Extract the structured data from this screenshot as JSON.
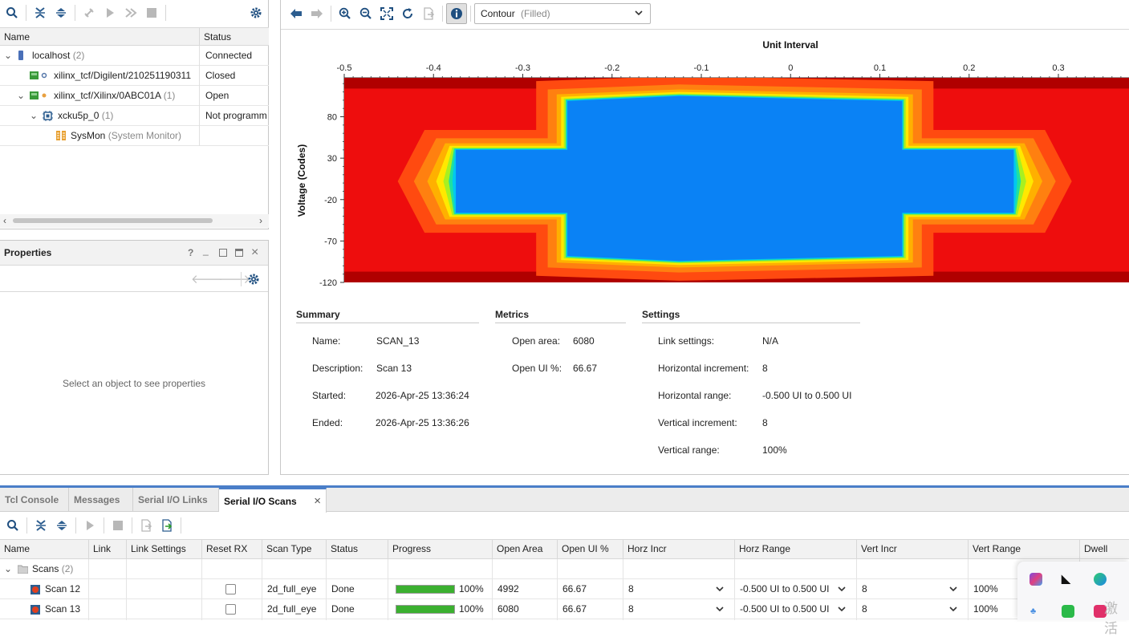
{
  "hardware": {
    "columns": {
      "name": "Name",
      "status": "Status"
    },
    "rows": [
      {
        "name": "localhost",
        "count": "(2)",
        "status": "Connected",
        "icon": "server-icon"
      },
      {
        "name": "xilinx_tcf/Digilent/210251190311",
        "count": "",
        "status": "Closed",
        "icon": "jtag-cable-icon"
      },
      {
        "name": "xilinx_tcf/Xilinx/0ABC01A",
        "count": "(1)",
        "status": "Open",
        "icon": "jtag-cable-icon"
      },
      {
        "name": "xcku5p_0",
        "count": "(1)",
        "status": "Not programm",
        "icon": "fpga-chip-icon"
      },
      {
        "name": "SysMon",
        "count": "(System Monitor)",
        "status": "",
        "icon": "sysmon-icon"
      }
    ]
  },
  "properties": {
    "title": "Properties",
    "empty_message": "Select an object to see properties"
  },
  "plot_toolbar": {
    "view_mode": "Contour",
    "view_mode_suffix": "(Filled)"
  },
  "chart_data": {
    "type": "heatmap",
    "title": "Unit Interval",
    "xlabel": "Unit Interval",
    "ylabel": "Voltage (Codes)",
    "x_ticks": [
      "-0.5",
      "-0.4",
      "-0.3",
      "-0.2",
      "-0.1",
      "0",
      "0.1",
      "0.2",
      "0.3"
    ],
    "y_ticks": [
      "80",
      "30",
      "-20",
      "-70",
      "-120"
    ],
    "xlim": [
      -0.5,
      0.38
    ],
    "ylim": [
      -120,
      127
    ],
    "open_eye_regions": [
      {
        "x": [
          -0.375,
          -0.25
        ],
        "y": [
          -36,
          40
        ]
      },
      {
        "x": [
          -0.25,
          0.125
        ],
        "y": [
          -88,
          99
        ]
      },
      {
        "x": [
          0.125,
          0.25
        ],
        "y": [
          -36,
          40
        ]
      }
    ]
  },
  "summary": {
    "heading": "Summary",
    "name_label": "Name:",
    "name": "SCAN_13",
    "description_label": "Description:",
    "description": "Scan 13",
    "started_label": "Started:",
    "started": "2026-Apr-25 13:36:24",
    "ended_label": "Ended:",
    "ended": "2026-Apr-25 13:36:26"
  },
  "metrics": {
    "heading": "Metrics",
    "open_area_label": "Open area:",
    "open_area": "6080",
    "open_ui_label": "Open UI %:",
    "open_ui": "66.67"
  },
  "settings": {
    "heading": "Settings",
    "link_settings_label": "Link settings:",
    "link_settings": "N/A",
    "h_incr_label": "Horizontal increment:",
    "h_incr": "8",
    "h_range_label": "Horizontal range:",
    "h_range": "-0.500 UI to 0.500 UI",
    "v_incr_label": "Vertical increment:",
    "v_incr": "8",
    "v_range_label": "Vertical range:",
    "v_range": "100%"
  },
  "tabs": [
    "Tcl Console",
    "Messages",
    "Serial I/O Links",
    "Serial I/O Scans"
  ],
  "scans": {
    "columns": [
      "Name",
      "Link",
      "Link Settings",
      "Reset RX",
      "Scan Type",
      "Status",
      "Progress",
      "Open Area",
      "Open UI %",
      "Horz Incr",
      "Horz Range",
      "Vert Incr",
      "Vert Range",
      "Dwell"
    ],
    "group": {
      "name": "Scans",
      "count": "(2)"
    },
    "rows": [
      {
        "name": "Scan 12",
        "scan_type": "2d_full_eye",
        "status": "Done",
        "progress": 1.0,
        "progress_text": "100%",
        "open_area": "4992",
        "open_ui": "66.67",
        "horz_incr": "8",
        "horz_range": "-0.500 UI to 0.500 UI",
        "vert_incr": "8",
        "vert_range": "100%"
      },
      {
        "name": "Scan 13",
        "scan_type": "2d_full_eye",
        "status": "Done",
        "progress": 1.0,
        "progress_text": "100%",
        "open_area": "6080",
        "open_ui": "66.67",
        "horz_incr": "8",
        "horz_range": "-0.500 UI to 0.500 UI",
        "vert_incr": "8",
        "vert_range": "100%"
      }
    ]
  },
  "overlay": {
    "watermark": "激活"
  },
  "colors": {
    "accent": "#4a7ec8",
    "progress": "#3bb030",
    "eye_open": "#0a82f5",
    "eye_outer": "#ee0d0d"
  }
}
